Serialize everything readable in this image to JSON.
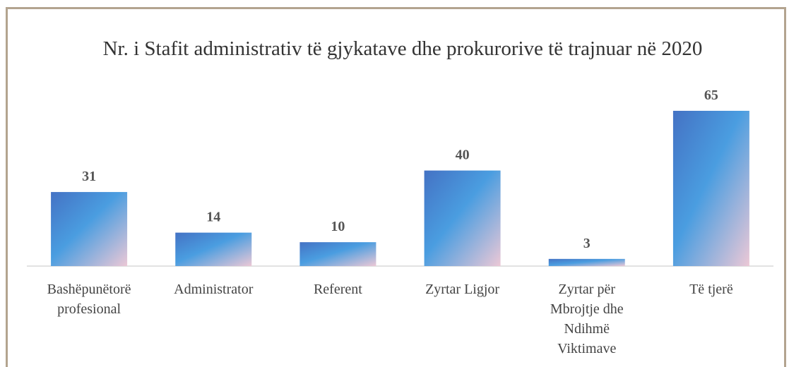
{
  "chart_data": {
    "type": "bar",
    "title": "Nr. i Stafit administrativ të gjykatave dhe prokurorive të trajnuar në 2020",
    "categories": [
      "Bashëpunëtorë profesional",
      "Administrator",
      "Referent",
      "Zyrtar Ligjor",
      "Zyrtar për Mbrojtje dhe Ndihmë Viktimave",
      "Të tjerë"
    ],
    "values": [
      31,
      14,
      10,
      40,
      3,
      65
    ],
    "colors": [
      "#4472c4",
      "#4a9de0",
      "#ecc8d6"
    ]
  }
}
